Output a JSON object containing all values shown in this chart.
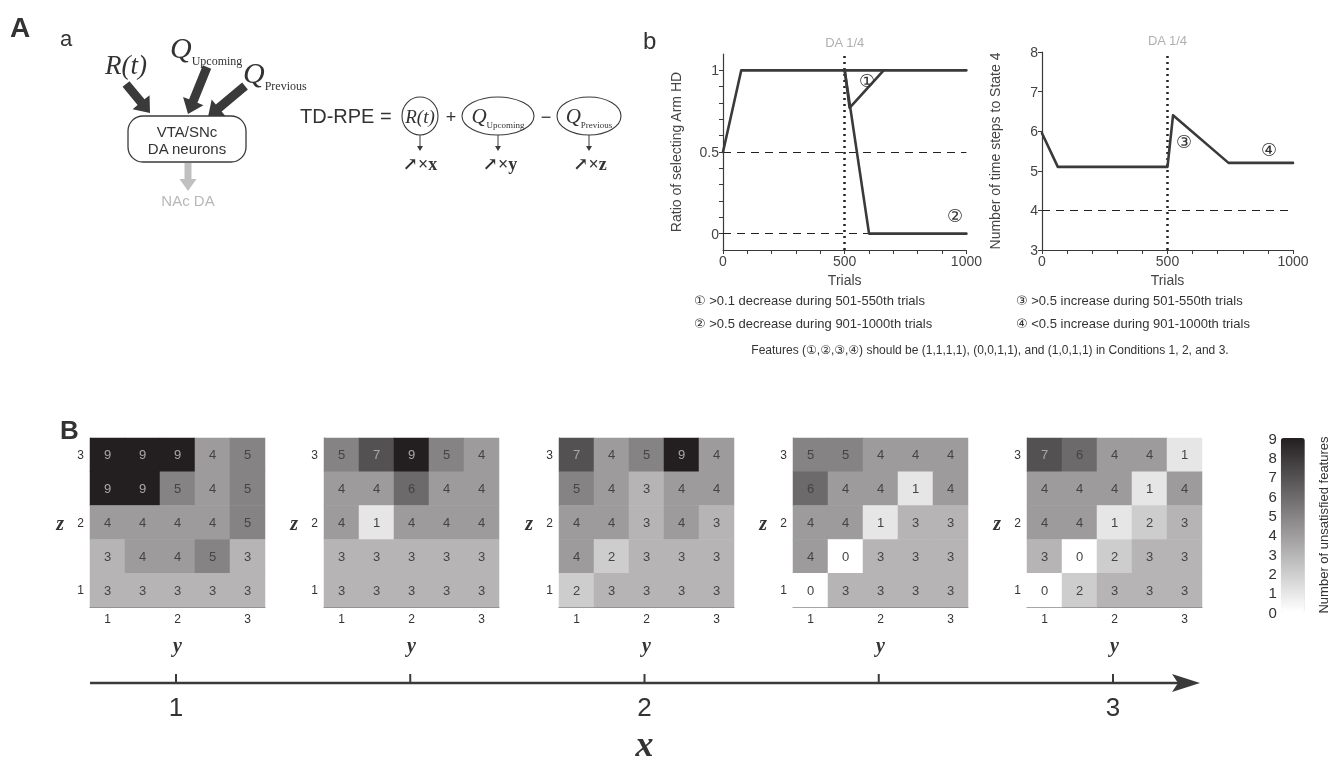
{
  "chart_data": [
    {
      "type": "other",
      "annotations": [
        "A",
        "a",
        "R(t)",
        "Q$_{Upcoming}$",
        "Q$_{Previous}$",
        "VTA/SNc",
        "DA neurons",
        "NAc DA",
        "TD-RPE =",
        "R(t)",
        "+",
        "Q$_{Upcoming}$",
        "−",
        "Q$_{Previous}$",
        "↗×x",
        "↗×y",
        "↗×z"
      ]
    },
    {
      "type": "line",
      "xlabel": "Trials",
      "ylabel": "Ratio of selecting Arm HD",
      "xlim": [
        0,
        1000
      ],
      "ylim": [
        -0.1,
        1.1
      ],
      "xticks": [
        0,
        {
          "value": 100,
          "label": null
        },
        {
          "value": 200,
          "label": null
        },
        {
          "value": 300,
          "label": null
        },
        {
          "value": 400,
          "label": null
        },
        500,
        {
          "value": 600,
          "label": null
        },
        {
          "value": 700,
          "label": null
        },
        {
          "value": 800,
          "label": null
        },
        {
          "value": 900,
          "label": null
        },
        1000
      ],
      "yticks": [
        0,
        {
          "value": 0.1,
          "label": null
        },
        {
          "value": 0.2,
          "label": null
        },
        {
          "value": 0.3,
          "label": null
        },
        {
          "value": 0.4,
          "label": null
        },
        0.5,
        {
          "value": 0.6,
          "label": null
        },
        {
          "value": 0.7,
          "label": null
        },
        {
          "value": 0.8,
          "label": null
        },
        {
          "value": 0.9,
          "label": null
        },
        1
      ],
      "series": [
        {
          "color": "#3a3a3a",
          "x": [
            0,
            75,
            1000
          ],
          "values": [
            0.5,
            1,
            1
          ]
        },
        {
          "color": "#3a3a3a",
          "x": [
            500,
            600,
            1000
          ],
          "values": [
            1,
            0,
            0
          ]
        },
        {
          "color": "#3a3a3a",
          "x": [
            500,
            520,
            660
          ],
          "values": [
            1,
            0.77,
            1
          ]
        }
      ],
      "ref_lines": [
        {
          "axis": "x",
          "value": 500,
          "label": "DA 1/4",
          "line_style": "dotted"
        },
        {
          "axis": "y",
          "value": 0.5,
          "line_style": "dashed"
        },
        {
          "axis": "y",
          "value": 0,
          "line_style": "dashed"
        }
      ],
      "annotations": [
        "b",
        "①",
        "②",
        "① >0.1 decrease during 501-550th trials",
        "② >0.5 decrease during 901-1000th trials",
        "Features (①,②,③,④) should be (1,1,1,1), (0,0,1,1), and (1,0,1,1) in Conditions 1, 2, and 3."
      ]
    },
    {
      "type": "line",
      "xlabel": "Trials",
      "ylabel": "Number of time steps to State 4",
      "xlim": [
        0,
        1000
      ],
      "ylim": [
        3,
        8
      ],
      "xticks": [
        0,
        {
          "value": 100,
          "label": null
        },
        {
          "value": 200,
          "label": null
        },
        {
          "value": 300,
          "label": null
        },
        {
          "value": 400,
          "label": null
        },
        500,
        {
          "value": 600,
          "label": null
        },
        {
          "value": 700,
          "label": null
        },
        {
          "value": 800,
          "label": null
        },
        {
          "value": 900,
          "label": null
        },
        1000
      ],
      "yticks": [
        3,
        4,
        5,
        6,
        7,
        8
      ],
      "series": [
        {
          "color": "#3a3a3a",
          "x": [
            0,
            63,
            500,
            522,
            743,
            1000
          ],
          "values": [
            5.95,
            5.1,
            5.1,
            6.4,
            5.2,
            5.2
          ]
        }
      ],
      "ref_lines": [
        {
          "axis": "x",
          "value": 500,
          "label": "DA 1/4",
          "line_style": "dotted"
        },
        {
          "axis": "y",
          "value": 4,
          "line_style": "dashed"
        }
      ],
      "annotations": [
        "③",
        "④",
        "③ >0.5 increase during 501-550th trials",
        "④ <0.5 increase during 901-1000th trials"
      ]
    },
    {
      "type": "heatmap",
      "categories": [
        "1",
        null,
        "2",
        null,
        "3"
      ],
      "y_categories": [
        "3",
        null,
        "2",
        null,
        "1"
      ],
      "xlabel": "y",
      "ylabel": "z",
      "data_labels": true,
      "annotations": [
        "B"
      ],
      "cells": [
        [
          9,
          9,
          9,
          4,
          5
        ],
        [
          9,
          9,
          5,
          4,
          5
        ],
        [
          4,
          4,
          4,
          4,
          5
        ],
        [
          3,
          4,
          4,
          5,
          3
        ],
        [
          3,
          3,
          3,
          3,
          3
        ]
      ]
    },
    {
      "type": "heatmap",
      "categories": [
        "1",
        null,
        "2",
        null,
        "3"
      ],
      "y_categories": [
        "3",
        null,
        "2",
        null,
        "1"
      ],
      "xlabel": "y",
      "ylabel": "z",
      "data_labels": true,
      "cells": [
        [
          5,
          7,
          9,
          5,
          4
        ],
        [
          4,
          4,
          6,
          4,
          4
        ],
        [
          4,
          1,
          4,
          4,
          4
        ],
        [
          3,
          3,
          3,
          3,
          3
        ],
        [
          3,
          3,
          3,
          3,
          3
        ]
      ]
    },
    {
      "type": "heatmap",
      "categories": [
        "1",
        null,
        "2",
        null,
        "3"
      ],
      "y_categories": [
        "3",
        null,
        "2",
        null,
        "1"
      ],
      "xlabel": "y",
      "ylabel": "z",
      "data_labels": true,
      "cells": [
        [
          7,
          4,
          5,
          9,
          4
        ],
        [
          5,
          4,
          3,
          4,
          4
        ],
        [
          4,
          4,
          3,
          4,
          3
        ],
        [
          4,
          2,
          3,
          3,
          3
        ],
        [
          2,
          3,
          3,
          3,
          3
        ]
      ]
    },
    {
      "type": "heatmap",
      "categories": [
        "1",
        null,
        "2",
        null,
        "3"
      ],
      "y_categories": [
        "3",
        null,
        "2",
        null,
        "1"
      ],
      "xlabel": "y",
      "ylabel": "z",
      "data_labels": true,
      "cells": [
        [
          5,
          5,
          4,
          4,
          4
        ],
        [
          6,
          4,
          4,
          1,
          4
        ],
        [
          4,
          4,
          1,
          3,
          3
        ],
        [
          4,
          0,
          3,
          3,
          3
        ],
        [
          0,
          3,
          3,
          3,
          3
        ]
      ]
    },
    {
      "type": "heatmap",
      "categories": [
        "1",
        null,
        "2",
        null,
        "3"
      ],
      "y_categories": [
        "3",
        null,
        "2",
        null,
        "1"
      ],
      "xlabel": "y",
      "ylabel": "z",
      "data_labels": true,
      "clim": [
        0,
        9
      ],
      "cticks": [
        0,
        1,
        2,
        3,
        4,
        5,
        6,
        7,
        8,
        9
      ],
      "clabel": "Number of unsatisfied features",
      "cells": [
        [
          7,
          6,
          4,
          4,
          1
        ],
        [
          4,
          4,
          4,
          1,
          4
        ],
        [
          4,
          4,
          1,
          2,
          3
        ],
        [
          3,
          0,
          2,
          3,
          3
        ],
        [
          0,
          2,
          3,
          3,
          3
        ]
      ]
    },
    {
      "type": "other",
      "xlabel": "x",
      "annotations": [
        "1",
        "2",
        "3"
      ]
    }
  ]
}
